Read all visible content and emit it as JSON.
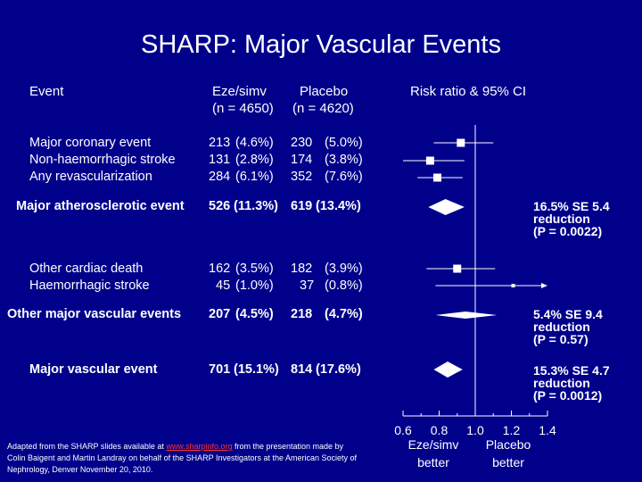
{
  "title": "SHARP: Major Vascular Events",
  "headers": {
    "event": "Event",
    "eze_label": "Eze/simv",
    "eze_n": "(n = 4650)",
    "placebo_label": "Placebo",
    "placebo_n": "(n = 4620)",
    "ratio": "Risk ratio & 95% CI"
  },
  "rows": [
    {
      "label": "Major coronary event",
      "eze": "213",
      "eze_pct": "(4.6%)",
      "placebo": "230",
      "placebo_pct": "(5.0%)"
    },
    {
      "label": "Non-haemorrhagic stroke",
      "eze": "131",
      "eze_pct": "(2.8%)",
      "placebo": "174",
      "placebo_pct": "(3.8%)"
    },
    {
      "label": "Any revascularization",
      "eze": "284",
      "eze_pct": "(6.1%)",
      "placebo": "352",
      "placebo_pct": "(7.6%)"
    },
    {
      "label": "Major atherosclerotic event",
      "eze": "526",
      "eze_pct": "(11.3%)",
      "placebo": "619",
      "placebo_pct": "(13.4%)"
    },
    {
      "label": "Other cardiac death",
      "eze": "162",
      "eze_pct": "(3.5%)",
      "placebo": "182",
      "placebo_pct": "(3.9%)"
    },
    {
      "label": "Haemorrhagic stroke",
      "eze": "45",
      "eze_pct": "(1.0%)",
      "placebo": "37",
      "placebo_pct": "(0.8%)"
    },
    {
      "label": "Other major vascular events",
      "eze": "207",
      "eze_pct": "(4.5%)",
      "placebo": "218",
      "placebo_pct": "(4.7%)"
    },
    {
      "label": "Major vascular event",
      "eze": "701",
      "eze_pct": "(15.1%)",
      "placebo": "814",
      "placebo_pct": "(17.6%)"
    }
  ],
  "summaries": [
    {
      "line1": "16.5% SE 5.4",
      "line2": "reduction",
      "line3": "(P = 0.0022)"
    },
    {
      "line1": "5.4% SE 9.4",
      "line2": "reduction",
      "line3": "(P = 0.57)"
    },
    {
      "line1": "15.3% SE 4.7",
      "line2": "reduction",
      "line3": "(P = 0.0012)"
    }
  ],
  "footnote": {
    "before": "Adapted from the SHARP slides available at ",
    "link": "www.sharpinfo.org",
    "after": " from the presentation made by Colin Baigent and Martin Landray on behalf of the SHARP Investigators at the American Society of Nephrology, Denver November 20, 2010."
  },
  "axis": {
    "favours_left_1": "Eze/simv",
    "favours_left_2": "better",
    "favours_right_1": "Placebo",
    "favours_right_2": "better"
  },
  "chart_data": {
    "type": "forest",
    "xlim": [
      0.6,
      1.4
    ],
    "xticks": [
      0.6,
      0.8,
      1.0,
      1.2,
      1.4
    ],
    "xtick_labels": [
      "0.6",
      "0.8",
      "1.0",
      "1.2",
      "1.4"
    ],
    "reference_line": 1.0,
    "points": [
      {
        "event": "Major coronary event",
        "rr": 0.92,
        "lo": 0.77,
        "hi": 1.1,
        "kind": "square"
      },
      {
        "event": "Non-haemorrhagic stroke",
        "rr": 0.75,
        "lo": 0.6,
        "hi": 0.94,
        "kind": "square"
      },
      {
        "event": "Any revascularization",
        "rr": 0.79,
        "lo": 0.68,
        "hi": 0.93,
        "kind": "square"
      },
      {
        "event": "Major atherosclerotic event",
        "rr": 0.835,
        "lo": 0.74,
        "hi": 0.94,
        "kind": "diamond"
      },
      {
        "event": "Other cardiac death",
        "rr": 0.9,
        "lo": 0.73,
        "hi": 1.11,
        "kind": "square"
      },
      {
        "event": "Haemorrhagic stroke",
        "rr": 1.21,
        "lo": 0.78,
        "hi": 1.87,
        "kind": "square"
      },
      {
        "event": "Other major vascular events",
        "rr": 0.946,
        "lo": 0.78,
        "hi": 1.12,
        "kind": "diamond"
      },
      {
        "event": "Major vascular event",
        "rr": 0.847,
        "lo": 0.77,
        "hi": 0.93,
        "kind": "diamond"
      }
    ]
  }
}
